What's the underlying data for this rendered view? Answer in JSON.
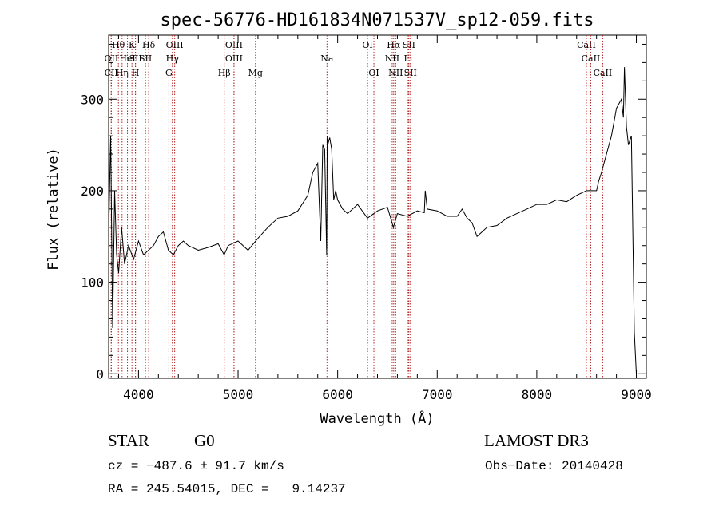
{
  "chart_data": {
    "type": "line",
    "title": "spec-56776-HD161834N071537V_sp12-059.fits",
    "xlabel": "Wavelength (Å)",
    "ylabel": "Flux (relative)",
    "xlim": [
      3700,
      9100
    ],
    "ylim": [
      -5,
      370
    ],
    "xticks": [
      4000,
      5000,
      6000,
      7000,
      8000,
      9000
    ],
    "yticks": [
      0,
      100,
      200,
      300
    ],
    "grid": false,
    "series": [
      {
        "x": [
          3700,
          3720,
          3740,
          3760,
          3780,
          3800,
          3830,
          3860,
          3900,
          3950,
          4000,
          4050,
          4100,
          4150,
          4200,
          4250,
          4300,
          4350,
          4400,
          4450,
          4500,
          4600,
          4700,
          4800,
          4860,
          4900,
          5000,
          5100,
          5200,
          5300,
          5400,
          5500,
          5600,
          5700,
          5750,
          5800,
          5830,
          5850,
          5870,
          5890,
          5895,
          5900,
          5920,
          5940,
          5960,
          5980,
          6000,
          6050,
          6100,
          6200,
          6300,
          6400,
          6500,
          6560,
          6600,
          6700,
          6800,
          6870,
          6880,
          6900,
          7000,
          7100,
          7200,
          7250,
          7300,
          7350,
          7400,
          7450,
          7500,
          7600,
          7700,
          7800,
          7900,
          8000,
          8100,
          8200,
          8300,
          8400,
          8500,
          8600,
          8620,
          8650,
          8700,
          8750,
          8800,
          8850,
          8870,
          8880,
          8900,
          8920,
          8950,
          8980,
          9000
        ],
        "y": [
          150,
          260,
          50,
          200,
          130,
          110,
          160,
          120,
          140,
          125,
          145,
          130,
          135,
          140,
          150,
          155,
          135,
          130,
          140,
          145,
          140,
          135,
          138,
          142,
          130,
          140,
          145,
          135,
          148,
          160,
          170,
          172,
          178,
          195,
          220,
          230,
          145,
          250,
          245,
          130,
          260,
          250,
          258,
          245,
          190,
          200,
          190,
          180,
          175,
          185,
          170,
          178,
          182,
          160,
          175,
          172,
          178,
          176,
          200,
          180,
          178,
          172,
          172,
          180,
          170,
          165,
          150,
          155,
          160,
          162,
          170,
          175,
          180,
          185,
          185,
          190,
          188,
          195,
          200,
          200,
          210,
          220,
          240,
          260,
          290,
          300,
          280,
          335,
          270,
          250,
          260,
          45,
          0
        ]
      }
    ],
    "lines_top": [
      {
        "label": "Hθ",
        "x": 3798,
        "row": 0
      },
      {
        "label": "OII",
        "x": 3727,
        "row": 1
      },
      {
        "label": "CII",
        "x": 3726,
        "row": 2
      },
      {
        "label": "Hη",
        "x": 3835,
        "row": 2
      },
      {
        "label": "K",
        "x": 3934,
        "row": 0
      },
      {
        "label": "HeI",
        "x": 3889,
        "row": 1
      },
      {
        "label": "SII",
        "x": 3970,
        "row": 1
      },
      {
        "label": "H",
        "x": 3969,
        "row": 2
      },
      {
        "label": "Hδ",
        "x": 4102,
        "row": 0
      },
      {
        "label": "SII",
        "x": 4070,
        "row": 1
      },
      {
        "label": "OIII",
        "x": 4363,
        "row": 0
      },
      {
        "label": "Hγ",
        "x": 4340,
        "row": 1
      },
      {
        "label": "G",
        "x": 4305,
        "row": 2
      },
      {
        "label": "OIII",
        "x": 4959,
        "row": 0
      },
      {
        "label": "OIII",
        "x": 4959,
        "row": 1
      },
      {
        "label": "Hβ",
        "x": 4861,
        "row": 2
      },
      {
        "label": "Mg",
        "x": 5175,
        "row": 2
      },
      {
        "label": "Na",
        "x": 5893,
        "row": 1
      },
      {
        "label": "OI",
        "x": 6300,
        "row": 0
      },
      {
        "label": "OI",
        "x": 6364,
        "row": 2
      },
      {
        "label": "Hα",
        "x": 6563,
        "row": 0
      },
      {
        "label": "SII",
        "x": 6716,
        "row": 0
      },
      {
        "label": "NII",
        "x": 6548,
        "row": 1
      },
      {
        "label": "Li",
        "x": 6708,
        "row": 1
      },
      {
        "label": "NII",
        "x": 6583,
        "row": 2
      },
      {
        "label": "SII",
        "x": 6731,
        "row": 2
      },
      {
        "label": "CaII",
        "x": 8498,
        "row": 0
      },
      {
        "label": "CaII",
        "x": 8542,
        "row": 1
      },
      {
        "label": "CaII",
        "x": 8662,
        "row": 2
      }
    ]
  },
  "info": {
    "object_class": "STAR",
    "subclass": "G0",
    "survey": "LAMOST DR3",
    "cz": "cz = −487.6 ± 91.7 km/s",
    "obs_date": "Obs−Date: 20140428",
    "coords": "RA = 245.54015, DEC =   9.14237"
  },
  "colors": {
    "line_marker": "#b22222",
    "spectrum": "#000000"
  }
}
